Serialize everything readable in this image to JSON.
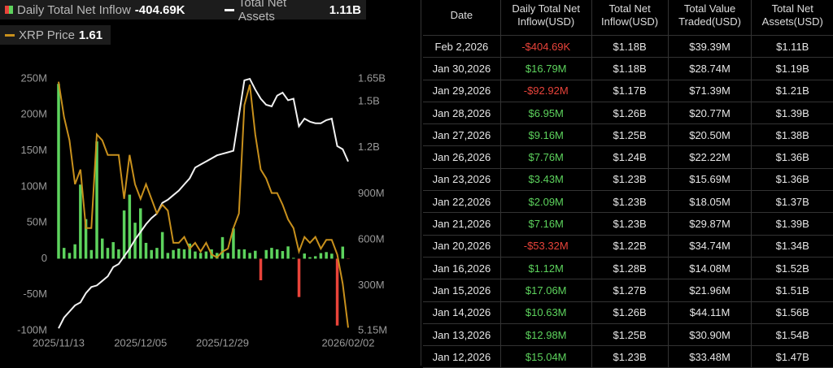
{
  "chart_data": {
    "type": "combo",
    "categories": [
      "2025/11/13",
      null,
      null,
      null,
      null,
      null,
      null,
      null,
      null,
      null,
      null,
      null,
      null,
      null,
      null,
      "2025/12/05",
      null,
      null,
      null,
      null,
      null,
      null,
      null,
      null,
      null,
      null,
      null,
      null,
      null,
      null,
      "2025/12/29",
      null,
      null,
      null,
      null,
      null,
      null,
      null,
      null,
      null,
      null,
      null,
      null,
      null,
      null,
      null,
      null,
      null,
      null,
      null,
      null,
      null,
      null,
      "2026/02/02"
    ],
    "series": [
      {
        "name": "Daily Total Net Inflow",
        "latest_label": "-404.69K",
        "type": "bar",
        "axis": "y",
        "color": "#5dd35d",
        "negative_color": "#e8433a",
        "values": [
          243,
          15,
          8,
          20,
          103,
          55,
          12,
          163,
          28,
          15,
          23,
          13,
          67,
          89,
          50,
          70,
          22,
          12,
          15,
          37,
          8,
          12,
          14,
          13,
          21,
          10,
          8,
          10,
          13,
          8,
          30,
          8,
          42,
          13,
          13,
          8,
          11,
          -30,
          12,
          15.04,
          12.98,
          10.63,
          17.06,
          1.12,
          -53.32,
          7.16,
          2.09,
          3.43,
          7.76,
          9.16,
          6.95,
          -92.92,
          16.79,
          -0.40469
        ]
      },
      {
        "name": "Total Net Assets",
        "latest_label": "1.11B",
        "type": "line",
        "axis": "y2",
        "color": "#f2f2f2",
        "values": [
          20,
          90,
          130,
          170,
          190,
          250,
          290,
          300,
          330,
          360,
          420,
          440,
          490,
          540,
          600,
          650,
          700,
          740,
          770,
          840,
          860,
          890,
          920,
          960,
          1000,
          1070,
          1090,
          1110,
          1130,
          1150,
          1160,
          1170,
          1180,
          1410,
          1640,
          1650,
          1580,
          1520,
          1480,
          1470,
          1540,
          1560,
          1510,
          1520,
          1340,
          1390,
          1370,
          1360,
          1360,
          1380,
          1390,
          1210,
          1190,
          1110
        ]
      },
      {
        "name": "XRP Price",
        "latest_label": "1.61",
        "type": "line",
        "axis": "y3",
        "color": "#c8901c",
        "values": [
          2.45,
          2.33,
          2.25,
          2.1,
          2.15,
          1.95,
          1.95,
          2.27,
          2.25,
          2.2,
          2.2,
          2.2,
          2.05,
          2.2,
          2.1,
          2.05,
          2.1,
          2.05,
          2.0,
          2.03,
          2.01,
          1.9,
          1.9,
          1.92,
          1.88,
          1.9,
          1.87,
          1.9,
          1.86,
          1.85,
          1.87,
          1.88,
          1.95,
          2.0,
          2.37,
          2.44,
          2.27,
          2.15,
          2.12,
          2.07,
          2.07,
          2.03,
          1.98,
          1.95,
          1.87,
          1.92,
          1.9,
          1.92,
          1.88,
          1.91,
          1.91,
          1.86,
          1.76,
          1.61
        ]
      }
    ],
    "ylim": [
      -100,
      250
    ],
    "yticks": [
      {
        "value": 250,
        "label": "250M"
      },
      {
        "value": 200,
        "label": "200M"
      },
      {
        "value": 150,
        "label": "150M"
      },
      {
        "value": 100,
        "label": "100M"
      },
      {
        "value": 50,
        "label": "50M"
      },
      0,
      {
        "value": -50,
        "label": "-50M"
      },
      {
        "value": -100,
        "label": "-100M"
      }
    ],
    "y2lim": [
      5.15,
      1650
    ],
    "y2ticks": [
      {
        "value": 1650,
        "label": "1.65B"
      },
      {
        "value": 1500,
        "label": "1.5B"
      },
      {
        "value": 1200,
        "label": "1.2B"
      },
      {
        "value": 900,
        "label": "900M"
      },
      {
        "value": 600,
        "label": "600M"
      },
      {
        "value": 300,
        "label": "300M"
      },
      {
        "value": 5.15,
        "label": "5.15M"
      }
    ],
    "y3lim": [
      1.6,
      2.46
    ],
    "grid": false
  },
  "table": {
    "headers": [
      "Date",
      "Daily Total Net\nInflow(USD)",
      "Total Net\nInflow(USD)",
      "Total Value\nTraded(USD)",
      "Total Net\nAssets(USD)"
    ],
    "rows": [
      [
        "Feb 2,2026",
        "-$404.69K",
        "$1.18B",
        "$39.39M",
        "$1.11B"
      ],
      [
        "Jan 30,2026",
        "$16.79M",
        "$1.18B",
        "$28.74M",
        "$1.19B"
      ],
      [
        "Jan 29,2026",
        "-$92.92M",
        "$1.17B",
        "$71.39M",
        "$1.21B"
      ],
      [
        "Jan 28,2026",
        "$6.95M",
        "$1.26B",
        "$20.77M",
        "$1.39B"
      ],
      [
        "Jan 27,2026",
        "$9.16M",
        "$1.25B",
        "$20.50M",
        "$1.38B"
      ],
      [
        "Jan 26,2026",
        "$7.76M",
        "$1.24B",
        "$22.22M",
        "$1.36B"
      ],
      [
        "Jan 23,2026",
        "$3.43M",
        "$1.23B",
        "$15.69M",
        "$1.36B"
      ],
      [
        "Jan 22,2026",
        "$2.09M",
        "$1.23B",
        "$18.05M",
        "$1.37B"
      ],
      [
        "Jan 21,2026",
        "$7.16M",
        "$1.23B",
        "$29.87M",
        "$1.39B"
      ],
      [
        "Jan 20,2026",
        "-$53.32M",
        "$1.22B",
        "$34.74M",
        "$1.34B"
      ],
      [
        "Jan 16,2026",
        "$1.12M",
        "$1.28B",
        "$14.08M",
        "$1.52B"
      ],
      [
        "Jan 15,2026",
        "$17.06M",
        "$1.27B",
        "$21.96M",
        "$1.51B"
      ],
      [
        "Jan 14,2026",
        "$10.63M",
        "$1.26B",
        "$44.11M",
        "$1.56B"
      ],
      [
        "Jan 13,2026",
        "$12.98M",
        "$1.25B",
        "$30.90M",
        "$1.54B"
      ],
      [
        "Jan 12,2026",
        "$15.04M",
        "$1.23B",
        "$33.48M",
        "$1.47B"
      ]
    ]
  }
}
